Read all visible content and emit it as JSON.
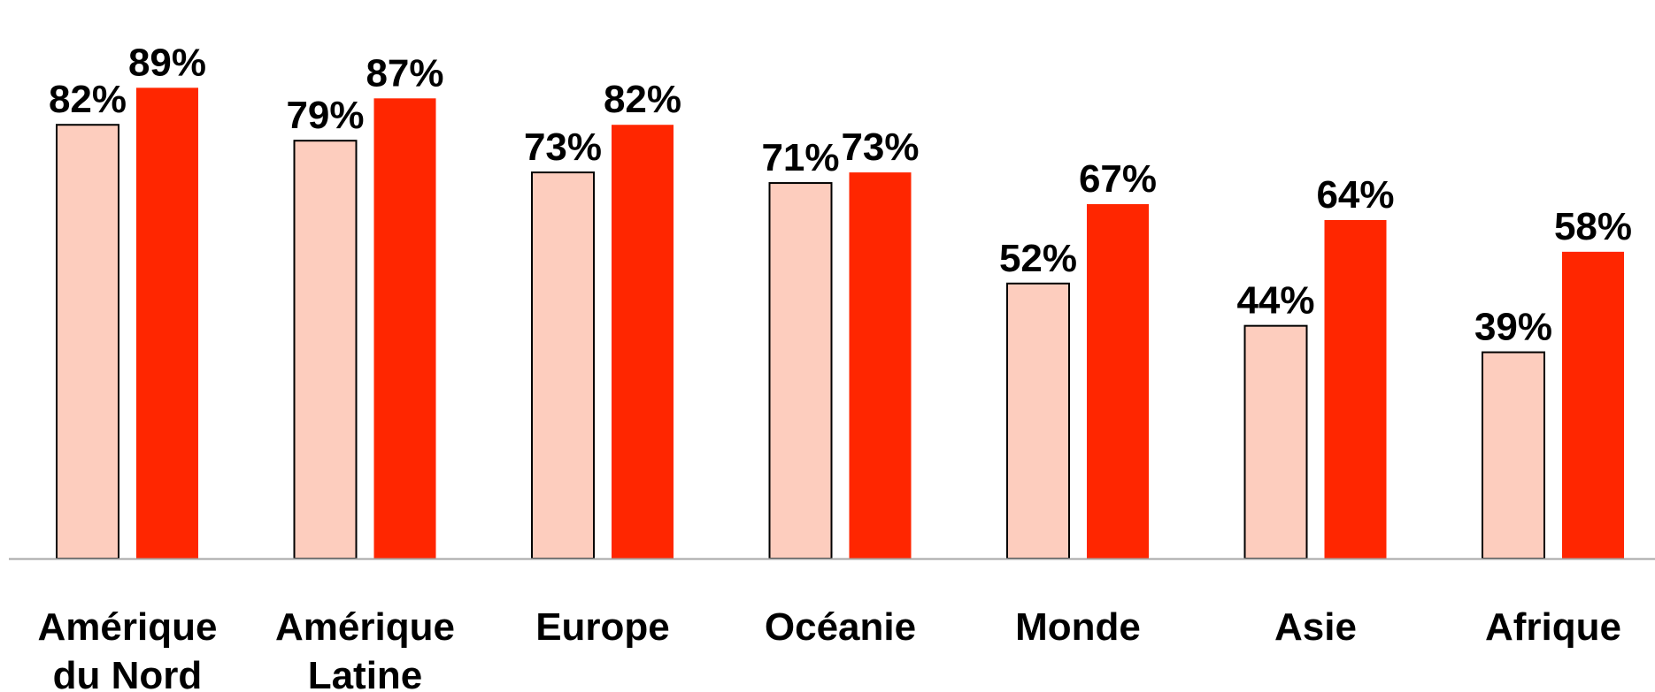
{
  "chart_data": {
    "type": "bar",
    "title": "",
    "xlabel": "",
    "ylabel": "",
    "ylim": [
      0,
      100
    ],
    "grid": false,
    "legend": "none",
    "categories": [
      [
        "Amérique",
        "du Nord"
      ],
      [
        "Amérique",
        "Latine"
      ],
      [
        "Europe"
      ],
      [
        "Océanie"
      ],
      [
        "Monde"
      ],
      [
        "Asie"
      ],
      [
        "Afrique"
      ]
    ],
    "series": [
      {
        "values": [
          82,
          79,
          73,
          71,
          52,
          44,
          39
        ],
        "labels": [
          "82%",
          "79%",
          "73%",
          "71%",
          "52%",
          "44%",
          "39%"
        ],
        "color": "#FDCDBE",
        "stroke": "#000000"
      },
      {
        "values": [
          89,
          87,
          82,
          73,
          67,
          64,
          58
        ],
        "labels": [
          "89%",
          "87%",
          "82%",
          "73%",
          "67%",
          "64%",
          "58%"
        ],
        "color": "#FF2600",
        "stroke": "none"
      }
    ],
    "axis_color": "#A6A6A6"
  }
}
